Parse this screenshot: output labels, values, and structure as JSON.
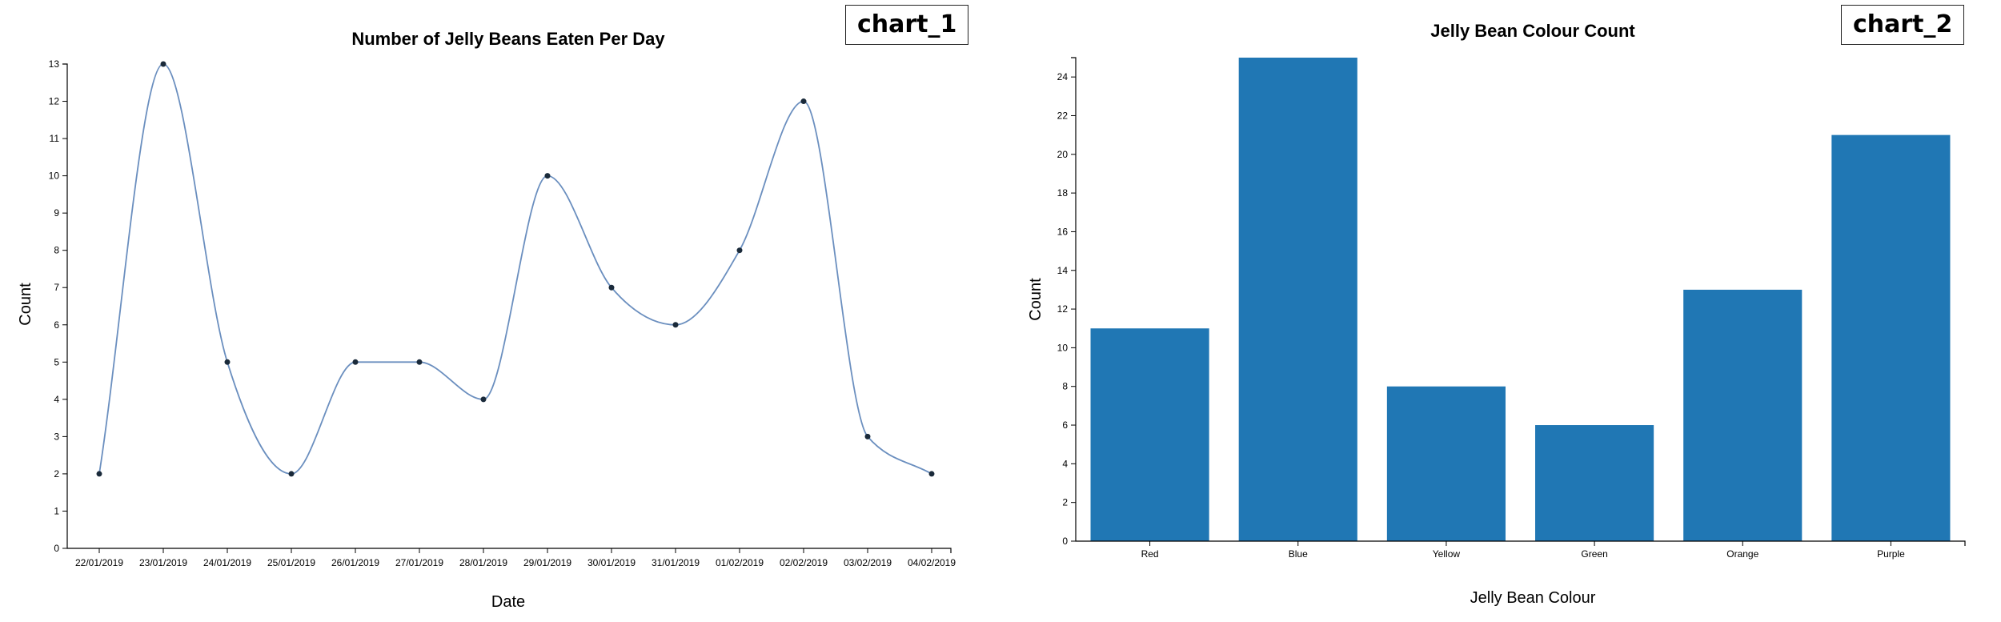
{
  "chart_data": [
    {
      "id": "chart_1",
      "type": "line",
      "title": "Number of Jelly Beans Eaten Per Day",
      "xlabel": "Date",
      "ylabel": "Count",
      "ylim": [
        0,
        13
      ],
      "yticks": [
        0,
        1,
        2,
        3,
        4,
        5,
        6,
        7,
        8,
        9,
        10,
        11,
        12,
        13
      ],
      "categories": [
        "22/01/2019",
        "23/01/2019",
        "24/01/2019",
        "25/01/2019",
        "26/01/2019",
        "27/01/2019",
        "28/01/2019",
        "29/01/2019",
        "30/01/2019",
        "31/01/2019",
        "01/02/2019",
        "02/02/2019",
        "03/02/2019",
        "04/02/2019"
      ],
      "values": [
        2,
        13,
        5,
        2,
        5,
        5,
        4,
        10,
        7,
        6,
        8,
        12,
        3,
        2
      ],
      "line_color": "#6b8fbf",
      "point_color": "#1a2a3a",
      "grid": false
    },
    {
      "id": "chart_2",
      "type": "bar",
      "title": "Jelly Bean Colour Count",
      "xlabel": "Jelly Bean Colour",
      "ylabel": "Count",
      "ylim": [
        0,
        25
      ],
      "yticks": [
        0,
        2,
        4,
        6,
        8,
        10,
        12,
        14,
        16,
        18,
        20,
        22,
        24
      ],
      "categories": [
        "Red",
        "Blue",
        "Yellow",
        "Green",
        "Orange",
        "Purple"
      ],
      "values": [
        11,
        25,
        8,
        6,
        13,
        21
      ],
      "bar_color": "#2077b4",
      "grid": false
    }
  ]
}
